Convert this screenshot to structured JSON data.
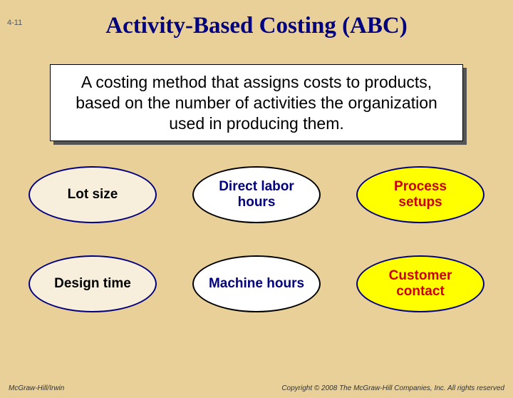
{
  "page_number": "4-11",
  "title": "Activity-Based Costing (ABC)",
  "definition": "A costing method that assigns costs to products, based on the number of activities the organization used in producing them.",
  "ovals": [
    {
      "label": "Lot size",
      "fill": "#f8eedc",
      "border": "#000080",
      "text": "#000000"
    },
    {
      "label": "Direct labor hours",
      "fill": "#ffffff",
      "border": "#000000",
      "text": "#000080"
    },
    {
      "label": "Process setups",
      "fill": "#ffff00",
      "border": "#000080",
      "text": "#cc0000"
    },
    {
      "label": "Design time",
      "fill": "#f8eedc",
      "border": "#000080",
      "text": "#000000"
    },
    {
      "label": "Machine hours",
      "fill": "#ffffff",
      "border": "#000000",
      "text": "#000080"
    },
    {
      "label": "Customer contact",
      "fill": "#ffff00",
      "border": "#000080",
      "text": "#cc0000"
    }
  ],
  "footer_left": "McGraw-Hill/Irwin",
  "footer_right": "Copyright © 2008 The McGraw-Hill Companies, Inc. All rights reserved",
  "colors": {
    "background": "#e8d098",
    "title_color": "#000080",
    "box_bg": "#ffffff",
    "box_shadow": "#555555"
  },
  "typography": {
    "title_fontsize_pt": 25,
    "definition_fontsize_pt": 17,
    "oval_fontsize_pt": 14,
    "footer_fontsize_pt": 8
  }
}
